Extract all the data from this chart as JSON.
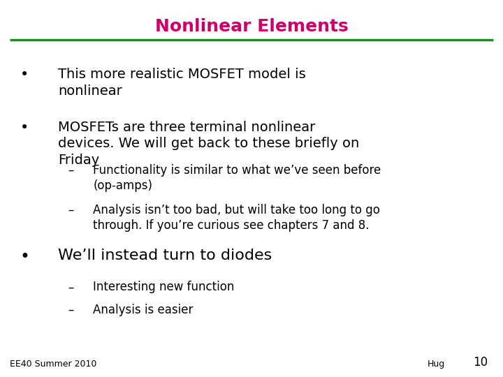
{
  "title": "Nonlinear Elements",
  "title_color": "#cc0066",
  "title_fontsize": 18,
  "line_color": "#228B22",
  "background_color": "#ffffff",
  "items": [
    {
      "text": "This more realistic MOSFET model is\nnonlinear",
      "level": 0,
      "fontsize": 14
    },
    {
      "text": "MOSFETs are three terminal nonlinear\ndevices. We will get back to these briefly on\nFriday",
      "level": 0,
      "fontsize": 14
    },
    {
      "text": "Functionality is similar to what we’ve seen before\n(op-amps)",
      "level": 1,
      "fontsize": 12
    },
    {
      "text": "Analysis isn’t too bad, but will take too long to go\nthrough. If you’re curious see chapters 7 and 8.",
      "level": 1,
      "fontsize": 12
    },
    {
      "text": "We’ll instead turn to diodes",
      "level": 0,
      "fontsize": 16
    },
    {
      "text": "Interesting new function",
      "level": 1,
      "fontsize": 12
    },
    {
      "text": "Analysis is easier",
      "level": 1,
      "fontsize": 12
    }
  ],
  "footer_left": "EE40 Summer 2010",
  "footer_right_name": "Hug",
  "footer_right_num": "10",
  "footer_fontsize": 9,
  "bullet_char": "•",
  "dash_char": "–",
  "bullet_indent": 0.04,
  "text_indent_l0": 0.115,
  "bullet_indent_l1": 0.135,
  "text_indent_l1": 0.185
}
